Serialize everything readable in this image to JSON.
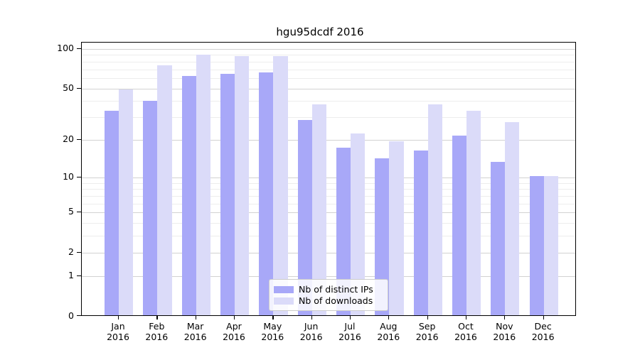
{
  "title": "hgu95dcdf 2016",
  "chart_data": {
    "type": "bar",
    "title": "hgu95dcdf 2016",
    "categories": [
      "Jan",
      "Feb",
      "Mar",
      "Apr",
      "May",
      "Jun",
      "Jul",
      "Aug",
      "Sep",
      "Oct",
      "Nov",
      "Dec"
    ],
    "category_sublabel": "2016",
    "series": [
      {
        "name": "Nb of distinct IPs",
        "color": "#a8a8f8",
        "values": [
          33,
          39,
          61,
          63,
          65,
          28,
          17,
          14,
          16,
          21,
          13,
          10
        ]
      },
      {
        "name": "Nb of downloads",
        "color": "#dbdbf9",
        "values": [
          48,
          73,
          88,
          86,
          86,
          37,
          22,
          19,
          37,
          33,
          27,
          10
        ]
      }
    ],
    "xlabel": "",
    "ylabel": "",
    "y_scale": "log10(1+x)",
    "y_tick_labels": [
      "0",
      "1",
      "2",
      "5",
      "10",
      "20",
      "50",
      "100"
    ],
    "y_major_ticks": [
      0,
      1,
      2,
      5,
      10,
      20,
      50,
      100
    ],
    "y_minor_gridlines": [
      3,
      4,
      6,
      7,
      8,
      9,
      30,
      40,
      60,
      70,
      80,
      90
    ],
    "ylim": [
      0,
      112
    ],
    "grid": "horizontal",
    "legend_position": "lower center",
    "legend": [
      "Nb of distinct IPs",
      "Nb of downloads"
    ]
  }
}
